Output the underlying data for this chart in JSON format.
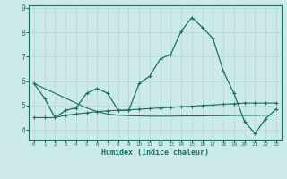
{
  "xlabel": "Humidex (Indice chaleur)",
  "x": [
    0,
    1,
    2,
    3,
    4,
    5,
    6,
    7,
    8,
    9,
    10,
    11,
    12,
    13,
    14,
    15,
    16,
    17,
    18,
    19,
    20,
    21,
    22,
    23
  ],
  "line1": [
    5.9,
    5.3,
    4.5,
    4.8,
    4.9,
    5.5,
    5.7,
    5.5,
    4.8,
    4.8,
    5.9,
    6.2,
    6.9,
    7.1,
    8.05,
    8.6,
    8.2,
    7.75,
    6.4,
    5.5,
    4.35,
    3.85,
    4.45,
    4.85
  ],
  "line2": [
    4.5,
    4.5,
    4.5,
    4.6,
    4.65,
    4.7,
    4.75,
    4.78,
    4.8,
    4.82,
    4.85,
    4.87,
    4.9,
    4.92,
    4.95,
    4.97,
    5.0,
    5.02,
    5.05,
    5.07,
    5.1,
    5.1,
    5.1,
    5.1
  ],
  "line3": [
    5.9,
    5.7,
    5.5,
    5.3,
    5.1,
    4.9,
    4.75,
    4.65,
    4.6,
    4.58,
    4.57,
    4.56,
    4.56,
    4.56,
    4.57,
    4.57,
    4.57,
    4.58,
    4.58,
    4.59,
    4.59,
    4.59,
    4.6,
    4.61
  ],
  "color": "#1a7060",
  "bg_color": "#cdeaea",
  "grid_color": "#b8d8d8",
  "ylim": [
    3.6,
    9.1
  ],
  "xlim": [
    -0.5,
    23.5
  ]
}
